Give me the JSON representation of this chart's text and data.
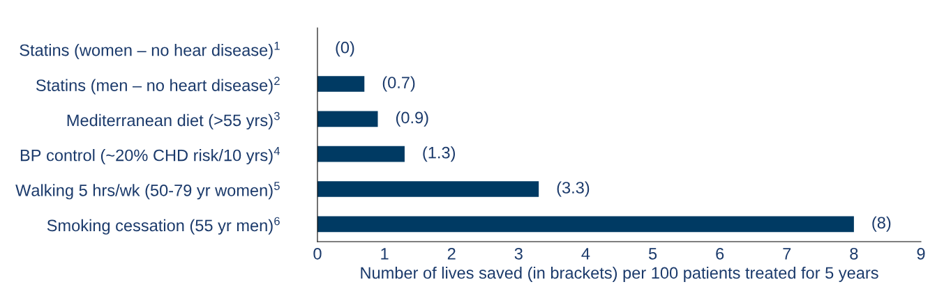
{
  "chart_data": {
    "type": "bar",
    "orientation": "horizontal",
    "xlabel": "Number of lives saved (in brackets) per 100 patients treated for 5 years",
    "categories": [
      "Statins (women – no hear disease)$^{1}$",
      "Statins (men – no heart disease)$^{2}$",
      "Mediterranean diet (>55 yrs)$^{3}$",
      "BP control (~20% CHD risk/10 yrs)$^{4}$",
      "Walking 5 hrs/wk (50-79 yr women)$^{5}$",
      "Smoking cessation (55 yr men)$^{6}$"
    ],
    "values": [
      0,
      0.7,
      0.9,
      1.3,
      3.3,
      8
    ],
    "value_labels": [
      "(0)",
      "(0.7)",
      "(0.9)",
      "(1.3)",
      "(3.3)",
      "(8)"
    ],
    "color": "#003a63",
    "xlim": [
      0,
      9
    ],
    "xticks": [
      0,
      1,
      2,
      3,
      4,
      5,
      6,
      7,
      8,
      9
    ],
    "grid": false,
    "legend": false
  }
}
